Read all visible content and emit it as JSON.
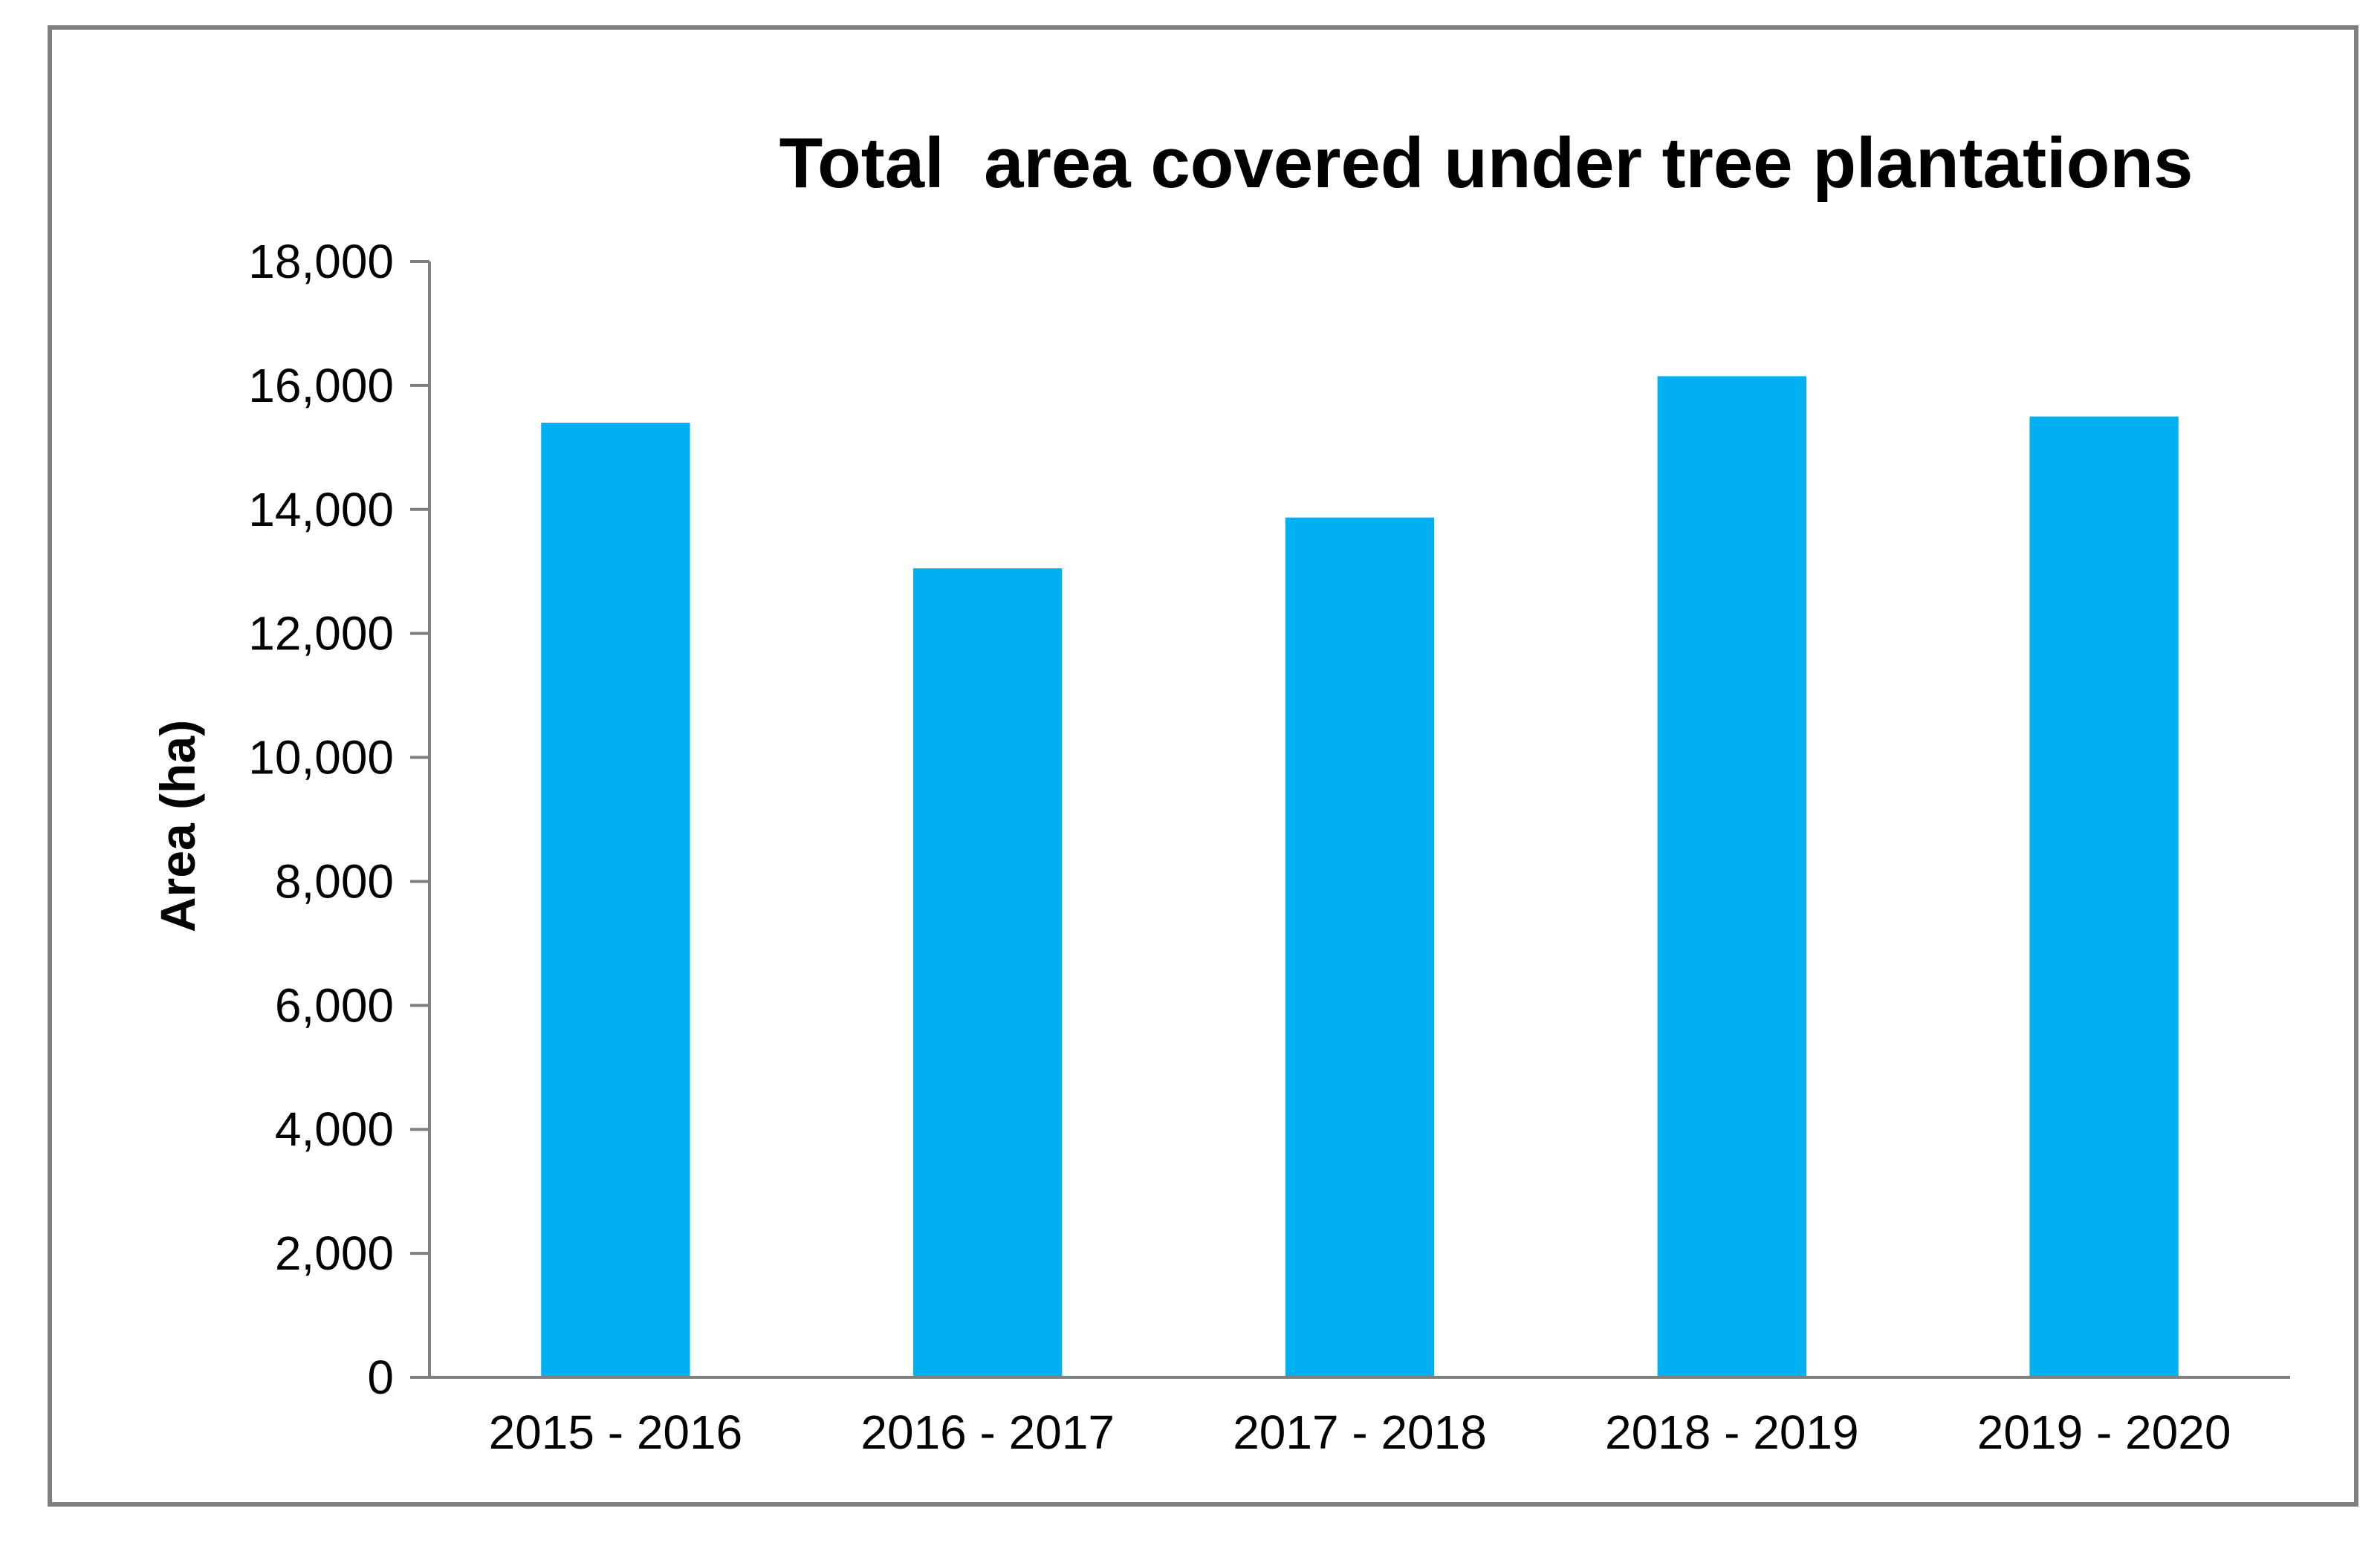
{
  "chart_data": {
    "type": "bar",
    "title": "Total  area covered under tree plantations",
    "xlabel": "",
    "ylabel": "Area (ha)",
    "categories": [
      "2015 - 2016",
      "2016 - 2017",
      "2017 - 2018",
      "2018 - 2019",
      "2019 - 2020"
    ],
    "values": [
      15400,
      13050,
      13870,
      16150,
      15500
    ],
    "ylim": [
      0,
      18000
    ],
    "yticks": [
      0,
      2000,
      4000,
      6000,
      8000,
      10000,
      12000,
      14000,
      16000,
      18000
    ],
    "ytick_labels": [
      "0",
      "2,000",
      "4,000",
      "6,000",
      "8,000",
      "10,000",
      "12,000",
      "14,000",
      "16,000",
      "18,000"
    ],
    "bar_color": "#00b0f0",
    "grid": false,
    "legend": "none"
  }
}
